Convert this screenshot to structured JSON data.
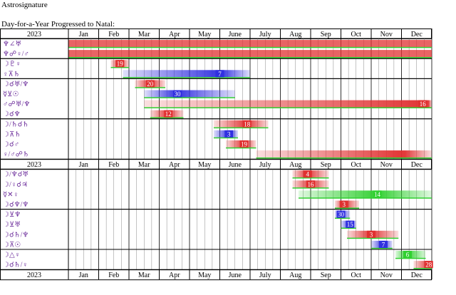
{
  "page": {
    "title": "Astrosignature",
    "subtitle": "Day-for-a-Year Progressed to Natal:"
  },
  "chart_data": {
    "type": "timeline",
    "year": "2023",
    "months": [
      "Jan",
      "Feb",
      "Mar",
      "Apr",
      "May",
      "June",
      "July",
      "Aug",
      "Sep",
      "Oct",
      "Nov",
      "Dec"
    ],
    "colors": {
      "red": "#e03030",
      "blue": "#3030e0",
      "green": "#30d030",
      "grid": "#000000"
    },
    "groups": [
      {
        "header": true,
        "rows": [
          {
            "label": "♆∠♅",
            "start": 0,
            "end": 12,
            "color": "red",
            "number": null,
            "solid": true
          },
          {
            "label": "♆☍♀/♂",
            "start": 0,
            "end": 12,
            "color": "red",
            "number": null,
            "solid": true
          }
        ]
      },
      {
        "header": false,
        "rows": [
          {
            "label": "☽♇♀",
            "start": 1.4,
            "end": 2.0,
            "color": "red",
            "number": "19",
            "peak": 1.7
          },
          {
            "label": "♀⊼♄",
            "start": 1.8,
            "end": 6.0,
            "color": "blue",
            "number": "7",
            "peak": 5.0
          }
        ]
      },
      {
        "header": false,
        "rows": [
          {
            "label": "☽☌♅/♆",
            "start": 2.2,
            "end": 3.2,
            "color": "red",
            "number": "20",
            "peak": 2.7
          },
          {
            "label": "☿⊻☉",
            "start": 2.5,
            "end": 5.5,
            "color": "blue",
            "number": "30",
            "peak": 3.6
          },
          {
            "label": "♂☍♅/♆",
            "start": 2.5,
            "end": 12,
            "color": "red",
            "number": "16",
            "peak": 11.7
          },
          {
            "label": "☽☌♆",
            "start": 2.7,
            "end": 3.8,
            "color": "red",
            "number": "12",
            "peak": 3.3
          }
        ]
      },
      {
        "header": false,
        "rows": [
          {
            "label": "☽/♄☌♄",
            "start": 4.8,
            "end": 6.6,
            "color": "red",
            "number": "18",
            "peak": 5.9
          },
          {
            "label": "☽⊼♄",
            "start": 4.8,
            "end": 5.6,
            "color": "blue",
            "number": "3",
            "peak": 5.3
          },
          {
            "label": "☽☌♂",
            "start": 5.2,
            "end": 6.2,
            "color": "red",
            "number": "19",
            "peak": 5.8
          },
          {
            "label": "♀/♂☍♄",
            "start": 6.2,
            "end": 12,
            "color": "red",
            "number": null,
            "peak": 11
          }
        ]
      },
      {
        "header": true,
        "rows": [
          {
            "label": "☽/♆☌♅",
            "start": 7.4,
            "end": 8.6,
            "color": "red",
            "number": "4",
            "peak": 7.9
          },
          {
            "label": "☽/♀☌♃",
            "start": 7.4,
            "end": 8.6,
            "color": "red",
            "number": "16",
            "peak": 8.0
          },
          {
            "label": "☿✕♀",
            "start": 7.6,
            "end": 12,
            "color": "green",
            "number": "14",
            "peak": 10.2
          },
          {
            "label": "☽☌♆/♆",
            "start": 8.8,
            "end": 9.6,
            "color": "red",
            "number": "3",
            "peak": 9.1
          }
        ]
      },
      {
        "header": false,
        "rows": [
          {
            "label": "☽⊻♆",
            "start": 8.8,
            "end": 9.3,
            "color": "blue",
            "number": "30",
            "peak": 9.0
          },
          {
            "label": "☽⊻♅",
            "start": 9.0,
            "end": 9.5,
            "color": "blue",
            "number": "15",
            "peak": 9.3
          },
          {
            "label": "☽☌♄/♆",
            "start": 9.2,
            "end": 10.9,
            "color": "red",
            "number": "3",
            "peak": 10.0
          },
          {
            "label": "☽⊼☉",
            "start": 10.0,
            "end": 10.7,
            "color": "blue",
            "number": "7",
            "peak": 10.4
          }
        ]
      },
      {
        "header": false,
        "rows": [
          {
            "label": "☽△♀",
            "start": 10.8,
            "end": 11.8,
            "color": "green",
            "number": "6",
            "peak": 11.2
          },
          {
            "label": "☽☌♄/♀",
            "start": 11.4,
            "end": 12,
            "color": "red",
            "number": "28",
            "peak": 11.9
          }
        ]
      }
    ]
  }
}
